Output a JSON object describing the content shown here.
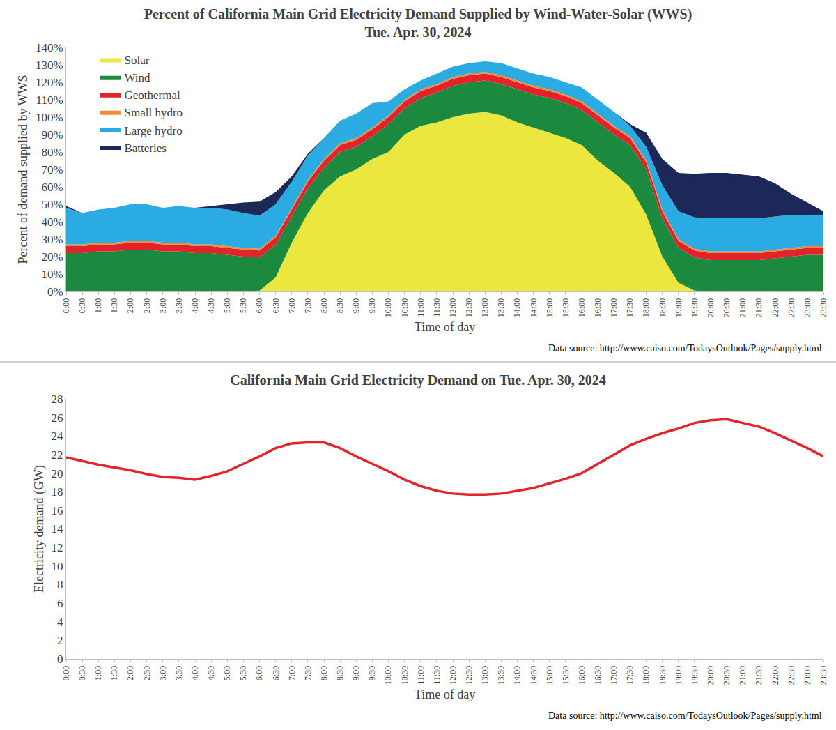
{
  "chart_data": [
    {
      "type": "area",
      "title": "Percent of California Main Grid Electricity Demand Supplied by Wind-Water-Solar (WWS)",
      "subtitle": "Tue. Apr. 30, 2024",
      "x_label": "Time of day",
      "y_label": "Percent of demand supplied by WWS",
      "source": "Data source: http://www.caiso.com/TodaysOutlook/Pages/supply.html",
      "stacked": true,
      "grid": false,
      "legend": "upper left",
      "categories": [
        "0:00",
        "0:30",
        "1:00",
        "1:30",
        "2:00",
        "2:30",
        "3:00",
        "3:30",
        "4:00",
        "4:30",
        "5:00",
        "5:30",
        "6:00",
        "6:30",
        "7:00",
        "7:30",
        "8:00",
        "8:30",
        "9:00",
        "9:30",
        "10:00",
        "10:30",
        "11:00",
        "11:30",
        "12:00",
        "12:30",
        "13:00",
        "13:30",
        "14:00",
        "14:30",
        "15:00",
        "15:30",
        "16:00",
        "16:30",
        "17:00",
        "17:30",
        "18:00",
        "18:30",
        "19:00",
        "19:30",
        "20:00",
        "20:30",
        "21:00",
        "21:30",
        "22:00",
        "22:30",
        "23:00",
        "23:30"
      ],
      "series": [
        {
          "name": "Solar",
          "color": "#ece73f",
          "values": [
            0,
            0,
            0,
            0,
            0,
            0,
            0,
            0,
            0,
            0,
            0,
            0,
            0.5,
            8,
            28,
            45,
            58,
            66,
            70,
            76,
            80,
            90,
            95,
            97,
            100,
            102,
            103,
            101,
            97,
            94,
            91,
            88,
            84,
            75,
            68,
            60,
            44,
            20,
            5,
            0.5,
            0,
            0,
            0,
            0,
            0,
            0,
            0,
            0
          ]
        },
        {
          "name": "Wind",
          "color": "#1b8a3f",
          "values": [
            22,
            22,
            23,
            23,
            24,
            24,
            23,
            23,
            22,
            22,
            21,
            20,
            19,
            19,
            15,
            14,
            13,
            14,
            13,
            13,
            16,
            15,
            16,
            17,
            18,
            18,
            18,
            18,
            19,
            19,
            20,
            20,
            20,
            22,
            22,
            24,
            26,
            22,
            20,
            19,
            18,
            18,
            18,
            18,
            19,
            20,
            21,
            21
          ]
        },
        {
          "name": "Geothermal",
          "color": "#e3232a",
          "values": [
            4,
            4,
            4,
            4,
            4,
            4,
            4,
            4,
            4,
            4,
            4,
            4,
            4,
            4,
            4,
            4,
            4,
            4,
            4,
            4,
            4,
            4,
            4,
            4,
            4,
            4,
            4,
            4,
            4,
            4,
            4,
            4,
            4,
            4,
            4,
            4,
            4,
            4,
            4,
            4,
            4,
            4,
            4,
            4,
            4,
            4,
            4,
            4
          ]
        },
        {
          "name": "Small hydro",
          "color": "#ef8a3b",
          "values": [
            1,
            1,
            1,
            1,
            1,
            1,
            1,
            1,
            1,
            1,
            1,
            1,
            1,
            1,
            1,
            1,
            1,
            1,
            1,
            1,
            1,
            1,
            1,
            1,
            1,
            1,
            1,
            1,
            1,
            1,
            1,
            1,
            1,
            1,
            1,
            1,
            1,
            1,
            1,
            1,
            1,
            1,
            1,
            1,
            1,
            1,
            1,
            1
          ]
        },
        {
          "name": "Large hydro",
          "color": "#2aabe2",
          "values": [
            21,
            18,
            19,
            20,
            21,
            21,
            20,
            21,
            21,
            21,
            21,
            20,
            19,
            18,
            15,
            14,
            12,
            13,
            14,
            14,
            8,
            6,
            5,
            6,
            6,
            6,
            6,
            7,
            7,
            7,
            7,
            7,
            8,
            8,
            8,
            6,
            8,
            14,
            16,
            18,
            19,
            19,
            19,
            19,
            19,
            19,
            18,
            18
          ]
        },
        {
          "name": "Batteries",
          "color": "#1c2857",
          "values": [
            1,
            0,
            0,
            0,
            0,
            0,
            0,
            0,
            0,
            1,
            3,
            6,
            8,
            7,
            3,
            1,
            0,
            0,
            0,
            0,
            0,
            0,
            0,
            0,
            0,
            0,
            0,
            0,
            0,
            0,
            0,
            0,
            0,
            0,
            0,
            1,
            8,
            15,
            22,
            25,
            26,
            26,
            25,
            24,
            19,
            12,
            7,
            2
          ]
        }
      ],
      "ylim": [
        0,
        140
      ],
      "yticks": [
        {
          "value": 0,
          "label": "0%"
        },
        {
          "value": 10,
          "label": "10%"
        },
        {
          "value": 20,
          "label": "20%"
        },
        {
          "value": 30,
          "label": "30%"
        },
        {
          "value": 40,
          "label": "40%"
        },
        {
          "value": 50,
          "label": "50%"
        },
        {
          "value": 60,
          "label": "60%"
        },
        {
          "value": 70,
          "label": "70%"
        },
        {
          "value": 80,
          "label": "80%"
        },
        {
          "value": 90,
          "label": "90%"
        },
        {
          "value": 100,
          "label": "100%"
        },
        {
          "value": 110,
          "label": "110%"
        },
        {
          "value": 120,
          "label": "120%"
        },
        {
          "value": 130,
          "label": "130%"
        },
        {
          "value": 140,
          "label": "140%"
        }
      ]
    },
    {
      "type": "line",
      "title": "California Main Grid Electricity Demand on Tue. Apr. 30, 2024",
      "x_label": "Time of day",
      "y_label": "Electricity demand (GW)",
      "source": "Data source: http://www.caiso.com/TodaysOutlook/Pages/supply.html",
      "grid": false,
      "color": "#e3242b",
      "categories": [
        "0:00",
        "0:30",
        "1:00",
        "1:30",
        "2:00",
        "2:30",
        "3:00",
        "3:30",
        "4:00",
        "4:30",
        "5:00",
        "5:30",
        "6:00",
        "6:30",
        "7:00",
        "7:30",
        "8:00",
        "8:30",
        "9:00",
        "9:30",
        "10:00",
        "10:30",
        "11:00",
        "11:30",
        "12:00",
        "12:30",
        "13:00",
        "13:30",
        "14:00",
        "14:30",
        "15:00",
        "15:30",
        "16:00",
        "16:30",
        "17:00",
        "17:30",
        "18:00",
        "18:30",
        "19:00",
        "19:30",
        "20:00",
        "20:30",
        "21:00",
        "21:30",
        "22:00",
        "22:30",
        "23:00",
        "23:30"
      ],
      "values": [
        21.7,
        21.3,
        20.9,
        20.6,
        20.3,
        19.9,
        19.6,
        19.5,
        19.3,
        19.7,
        20.2,
        21.0,
        21.8,
        22.7,
        23.2,
        23.3,
        23.3,
        22.7,
        21.8,
        21.0,
        20.2,
        19.3,
        18.6,
        18.1,
        17.8,
        17.7,
        17.7,
        17.8,
        18.1,
        18.4,
        18.9,
        19.4,
        20.0,
        21.0,
        22.0,
        23.0,
        23.7,
        24.3,
        24.8,
        25.4,
        25.7,
        25.8,
        25.4,
        25.0,
        24.3,
        23.5,
        22.7,
        21.8
      ],
      "ylim": [
        0,
        28
      ],
      "yticks": [
        0,
        2,
        4,
        6,
        8,
        10,
        12,
        14,
        16,
        18,
        20,
        22,
        24,
        26,
        28
      ]
    }
  ]
}
